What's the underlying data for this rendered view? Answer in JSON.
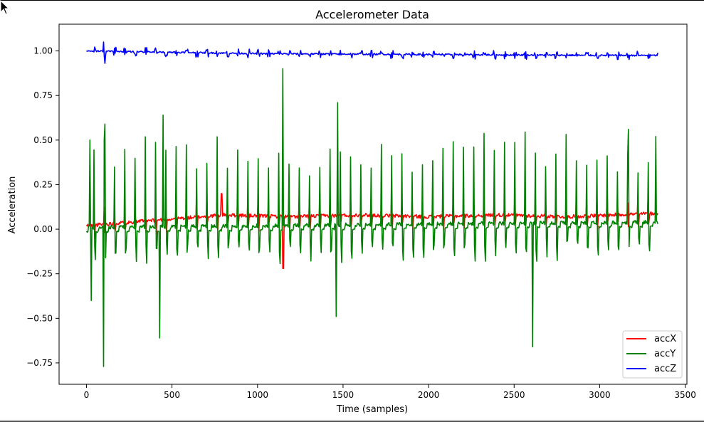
{
  "chart_data": {
    "type": "line",
    "title": "Accelerometer Data",
    "xlabel": "Time (samples)",
    "ylabel": "Acceleration",
    "xlim": [
      -160,
      3510
    ],
    "ylim": [
      -0.87,
      1.15
    ],
    "xticks": [
      0,
      500,
      1000,
      1500,
      2000,
      2500,
      3000,
      3500
    ],
    "xtick_labels": [
      "0",
      "500",
      "1000",
      "1500",
      "2000",
      "2500",
      "3000",
      "3500"
    ],
    "yticks": [
      -0.75,
      -0.5,
      -0.25,
      0.0,
      0.25,
      0.5,
      0.75,
      1.0
    ],
    "ytick_labels": [
      "−0.75",
      "−0.50",
      "−0.25",
      "0.00",
      "0.25",
      "0.50",
      "0.75",
      "1.00"
    ],
    "grid": false,
    "legend_position": "lower right",
    "n_samples": 3344,
    "series": [
      {
        "name": "accX",
        "color": "#ff0000",
        "baseline_points": [
          [
            0,
            0.02
          ],
          [
            400,
            0.05
          ],
          [
            800,
            0.08
          ],
          [
            1200,
            0.07
          ],
          [
            1600,
            0.08
          ],
          [
            2000,
            0.07
          ],
          [
            2400,
            0.08
          ],
          [
            2800,
            0.07
          ],
          [
            3344,
            0.09
          ]
        ],
        "peak_max": 0.2,
        "peak_min": -0.22
      },
      {
        "name": "accY",
        "color": "#008000",
        "baseline_points": [
          [
            0,
            0.0
          ],
          [
            1000,
            0.01
          ],
          [
            2000,
            0.02
          ],
          [
            3344,
            0.03
          ]
        ],
        "peak_max": 0.9,
        "peak_min": -0.77,
        "highlights": [
          [
            20,
            0.5
          ],
          [
            30,
            -0.4
          ],
          [
            100,
            -0.77
          ],
          [
            110,
            0.59
          ],
          [
            450,
            0.64
          ],
          [
            430,
            -0.61
          ],
          [
            1150,
            0.9
          ],
          [
            1470,
            0.71
          ],
          [
            1460,
            -0.49
          ],
          [
            2610,
            -0.66
          ],
          [
            3170,
            0.56
          ],
          [
            3330,
            0.52
          ]
        ]
      },
      {
        "name": "accZ",
        "color": "#0000ff",
        "baseline_points": [
          [
            0,
            1.0
          ],
          [
            1000,
            0.985
          ],
          [
            2000,
            0.98
          ],
          [
            3000,
            0.975
          ],
          [
            3344,
            0.975
          ]
        ],
        "peak_max": 1.05,
        "peak_min": 0.93
      }
    ]
  }
}
